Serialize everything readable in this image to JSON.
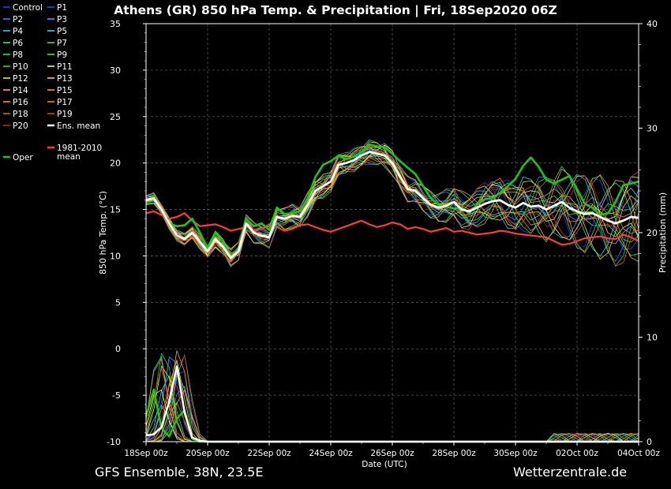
{
  "chart_data": {
    "type": "line",
    "title": "Athens  (GR)  850 hPa Temp. & Precipitation | Fri, 18Sep2020 06Z",
    "xlabel": "Date (UTC)",
    "ylabel": "850 hPa Temp. (°C)",
    "y2label": "Precipitation (mm)",
    "x_ticks": [
      "18Sep 00z",
      "20Sep 00z",
      "22Sep 00z",
      "24Sep 00z",
      "26Sep 00z",
      "28Sep 00z",
      "30Sep 00z",
      "02Oct 00z",
      "04Oct 00z"
    ],
    "xlim": [
      0,
      16
    ],
    "ylim": [
      -10,
      35
    ],
    "y_ticks": [
      -10,
      -5,
      0,
      5,
      10,
      15,
      20,
      25,
      30,
      35
    ],
    "y2lim": [
      0,
      40
    ],
    "y2_ticks": [
      0,
      10,
      20,
      30,
      40
    ],
    "grid": true,
    "legend_placement": "left",
    "series": [
      {
        "name": "Control",
        "color": "#3030ff"
      },
      {
        "name": "P1",
        "color": "#1f4fff"
      },
      {
        "name": "P2",
        "color": "#2a7fff"
      },
      {
        "name": "P3",
        "color": "#2aa8ff"
      },
      {
        "name": "P4",
        "color": "#22c6ff"
      },
      {
        "name": "P5",
        "color": "#22e0e0"
      },
      {
        "name": "P6",
        "color": "#30e0a0"
      },
      {
        "name": "P7",
        "color": "#30e080"
      },
      {
        "name": "P8",
        "color": "#30e060"
      },
      {
        "name": "P9",
        "color": "#50e030"
      },
      {
        "name": "P10",
        "color": "#22dd22"
      },
      {
        "name": "P11",
        "color": "#ffff40"
      },
      {
        "name": "P12",
        "color": "#e8e820"
      },
      {
        "name": "P13",
        "color": "#ffd020"
      },
      {
        "name": "P14",
        "color": "#ffb030"
      },
      {
        "name": "P15",
        "color": "#ff9830"
      },
      {
        "name": "P16",
        "color": "#ff8c20"
      },
      {
        "name": "P17",
        "color": "#ff7a20"
      },
      {
        "name": "P18",
        "color": "#e05a20"
      },
      {
        "name": "P19",
        "color": "#d04020"
      },
      {
        "name": "P20",
        "color": "#c02020"
      },
      {
        "name": "Ens. mean",
        "color": "#ffffff"
      },
      {
        "name": "1981-2010 mean",
        "color": "#ff3a3a"
      },
      {
        "name": "Oper",
        "color": "#18c818"
      }
    ],
    "ens_mean": {
      "x": [
        0,
        0.25,
        0.5,
        0.75,
        1,
        1.25,
        1.5,
        1.75,
        2,
        2.25,
        2.5,
        2.75,
        3,
        3.25,
        3.5,
        3.75,
        4,
        4.25,
        4.5,
        4.75,
        5,
        5.25,
        5.5,
        5.75,
        6,
        6.25,
        6.5,
        6.75,
        7,
        7.25,
        7.5,
        7.75,
        8,
        8.25,
        8.5,
        8.75,
        9,
        9.25,
        9.5,
        9.75,
        10,
        10.25,
        10.5,
        10.75,
        11,
        11.25,
        11.5,
        11.75,
        12,
        12.25,
        12.5,
        12.75,
        13,
        13.25,
        13.5,
        13.75,
        14,
        14.25,
        14.5,
        14.75,
        15,
        15.25,
        15.5,
        15.75,
        16
      ],
      "y": [
        16,
        16.2,
        15,
        13.5,
        12.2,
        11.8,
        12.5,
        11.5,
        10.5,
        11.8,
        11,
        9.8,
        10.5,
        13.5,
        12.5,
        12.2,
        12,
        14.2,
        14,
        14.3,
        14.2,
        15.5,
        17,
        17.5,
        18,
        19.8,
        20,
        20.3,
        20.8,
        21.2,
        21,
        20.8,
        20,
        18.5,
        17.2,
        17,
        16.2,
        15.5,
        15.2,
        15.4,
        15.8,
        15,
        14.8,
        15.2,
        15.6,
        15.9,
        16,
        15.5,
        15.2,
        15.7,
        15.3,
        15.4,
        15,
        15.4,
        15.8,
        15.2,
        14.8,
        14.5,
        14.6,
        14.2,
        13.8,
        13.5,
        13.8,
        14.2,
        14.1
      ]
    },
    "climate_mean": {
      "x": [
        0,
        0.25,
        0.5,
        0.75,
        1,
        1.25,
        1.5,
        1.75,
        2,
        2.25,
        2.5,
        2.75,
        3,
        3.25,
        3.5,
        3.75,
        4,
        4.25,
        4.5,
        4.75,
        5,
        5.25,
        5.5,
        5.75,
        6,
        6.25,
        6.5,
        6.75,
        7,
        7.25,
        7.5,
        7.75,
        8,
        8.25,
        8.5,
        8.75,
        9,
        9.25,
        9.5,
        9.75,
        10,
        10.25,
        10.5,
        10.75,
        11,
        11.25,
        11.5,
        11.75,
        12,
        12.25,
        12.5,
        12.75,
        13,
        13.25,
        13.5,
        13.75,
        14,
        14.25,
        14.5,
        14.75,
        15,
        15.25,
        15.5,
        15.75,
        16
      ],
      "y": [
        14.6,
        14.8,
        14.4,
        14,
        14.2,
        14.6,
        13.8,
        13.2,
        13.3,
        13.4,
        13.1,
        12.7,
        12.9,
        13.1,
        12.8,
        12.9,
        13.4,
        13.1,
        12.7,
        12.9,
        13.3,
        13.4,
        13.1,
        12.8,
        12.6,
        12.9,
        13.2,
        13.5,
        13.8,
        13.4,
        13.1,
        13.3,
        13.6,
        13.4,
        12.9,
        13.1,
        12.9,
        12.6,
        12.8,
        13,
        12.6,
        12.7,
        12.5,
        12.3,
        12.4,
        12.5,
        12.7,
        12.6,
        12.4,
        12.3,
        12.2,
        12.1,
        12,
        11.6,
        11.2,
        11.3,
        11.6,
        11.9,
        12,
        12.1,
        11.9,
        11.8,
        12.3,
        12,
        11.6
      ]
    },
    "oper": {
      "x": [
        0,
        0.25,
        0.5,
        0.75,
        1,
        1.25,
        1.5,
        1.75,
        2,
        2.25,
        2.5,
        2.75,
        3,
        3.25,
        3.5,
        3.75,
        4,
        4.25,
        4.5,
        4.75,
        5,
        5.25,
        5.5,
        5.75,
        6,
        6.25,
        6.5,
        6.75,
        7,
        7.25,
        7.5,
        7.75,
        8,
        8.25,
        8.5,
        8.75,
        9,
        9.25,
        9.5,
        9.75,
        10,
        10.25,
        10.5,
        10.75,
        11,
        11.25,
        11.5,
        11.75,
        12,
        12.25,
        12.5,
        12.75,
        13,
        13.25,
        13.5,
        13.75,
        14,
        14.25,
        14.5,
        14.75,
        15,
        15.25,
        15.5,
        15.75,
        16
      ],
      "y": [
        15.8,
        16.5,
        15,
        13.5,
        13.2,
        13.3,
        14,
        12.5,
        10.8,
        12.5,
        11.5,
        10,
        10.8,
        14,
        13.2,
        13.5,
        12.8,
        15.2,
        14.5,
        14.6,
        14.8,
        16.2,
        18.5,
        19.8,
        20.2,
        20.8,
        20.4,
        20.7,
        21.2,
        22,
        21.8,
        21.7,
        21,
        20.2,
        19.5,
        18.8,
        17.5,
        16.2,
        15.5,
        15.3,
        15.1,
        15.2,
        14.6,
        15.5,
        16.1,
        16.2,
        16.8,
        17.5,
        18.3,
        19.7,
        20.6,
        19.6,
        18.2,
        17.8,
        18.2,
        18.6,
        17.2,
        15.6,
        15.2,
        14.4,
        14.6,
        15.8,
        17.6,
        17.8,
        18
      ]
    },
    "ens_mean_precip": {
      "x": [
        0,
        0.25,
        0.5,
        0.75,
        1,
        1.25,
        1.5,
        1.75,
        2,
        16
      ],
      "y": [
        0.6,
        0.7,
        1.4,
        3.8,
        7.2,
        2.8,
        0.4,
        0.1,
        0,
        0
      ]
    },
    "oper_precip": {
      "x": [
        0,
        0.25,
        0.5,
        0.75,
        1,
        1.25,
        1.5,
        1.75,
        2,
        16
      ],
      "y": [
        2.4,
        5,
        1.3,
        0.5,
        2.2,
        3,
        0.3,
        0,
        0,
        0
      ]
    }
  },
  "footer": {
    "left": "GFS Ensemble, 38N, 23.5E",
    "right": "Wetterzentrale.de"
  }
}
